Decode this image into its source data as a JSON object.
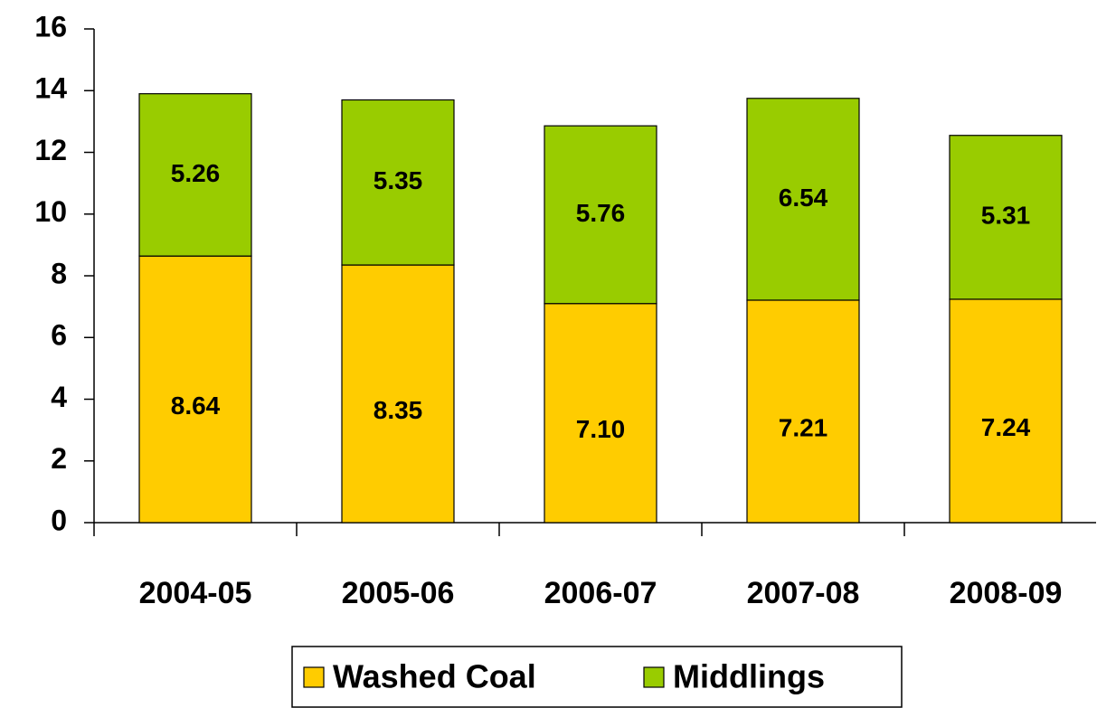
{
  "chart_data": {
    "type": "stacked_bar",
    "categories": [
      "2004-05",
      "2005-06",
      "2006-07",
      "2007-08",
      "2008-09"
    ],
    "series": [
      {
        "name": "Washed Coal",
        "color": "#ffcc00",
        "values": [
          8.64,
          8.35,
          7.1,
          7.21,
          7.24
        ],
        "value_labels": [
          "8.64",
          "8.35",
          "7.10",
          "7.21",
          "7.24"
        ]
      },
      {
        "name": "Middlings",
        "color": "#99cc00",
        "values": [
          5.26,
          5.35,
          5.76,
          6.54,
          5.31
        ]
      }
    ],
    "ylim": [
      0,
      16
    ],
    "yticks": [
      0,
      2,
      4,
      6,
      8,
      10,
      12,
      14,
      16
    ],
    "grid": false,
    "legend": "bottom"
  }
}
